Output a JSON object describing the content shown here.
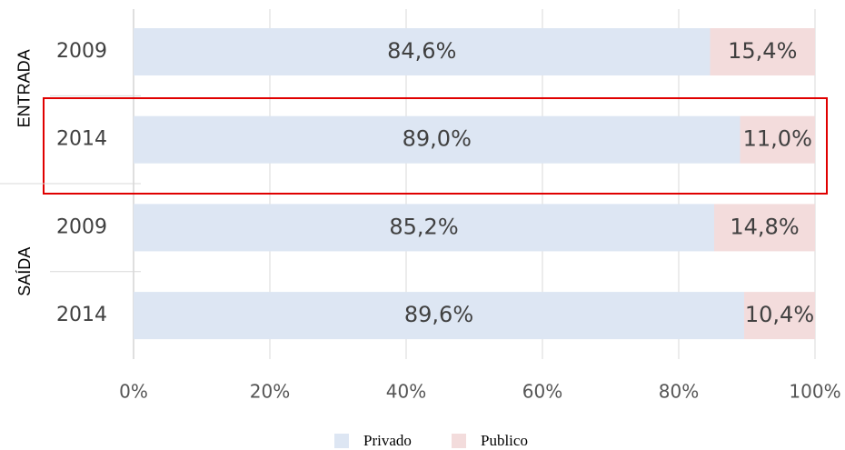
{
  "chart_data": {
    "type": "stacked-bar-horizontal",
    "groups": [
      {
        "name": "ENTRADA",
        "categories": [
          "2009",
          "2014"
        ]
      },
      {
        "name": "SAÍDA",
        "categories": [
          "2009",
          "2014"
        ]
      }
    ],
    "series": [
      {
        "name": "Privado",
        "color": "#dde6f3",
        "values": [
          84.6,
          89.0,
          85.2,
          89.6
        ],
        "value_labels": [
          "84,6%",
          "89,0%",
          "85,2%",
          "89,6%"
        ]
      },
      {
        "name": "Publico",
        "color": "#f3dcdc",
        "values": [
          15.4,
          11.0,
          14.8,
          10.4
        ],
        "value_labels": [
          "15,4%",
          "11,0%",
          "14,8%",
          "10,4%"
        ]
      }
    ],
    "xlim": [
      0,
      100
    ],
    "xticks": [
      {
        "value": 0,
        "label": "0%"
      },
      {
        "value": 20,
        "label": "20%"
      },
      {
        "value": 40,
        "label": "40%"
      },
      {
        "value": 60,
        "label": "60%"
      },
      {
        "value": 80,
        "label": "80%"
      },
      {
        "value": 100,
        "label": "100%"
      }
    ],
    "grid": true,
    "legend": "bottom"
  }
}
